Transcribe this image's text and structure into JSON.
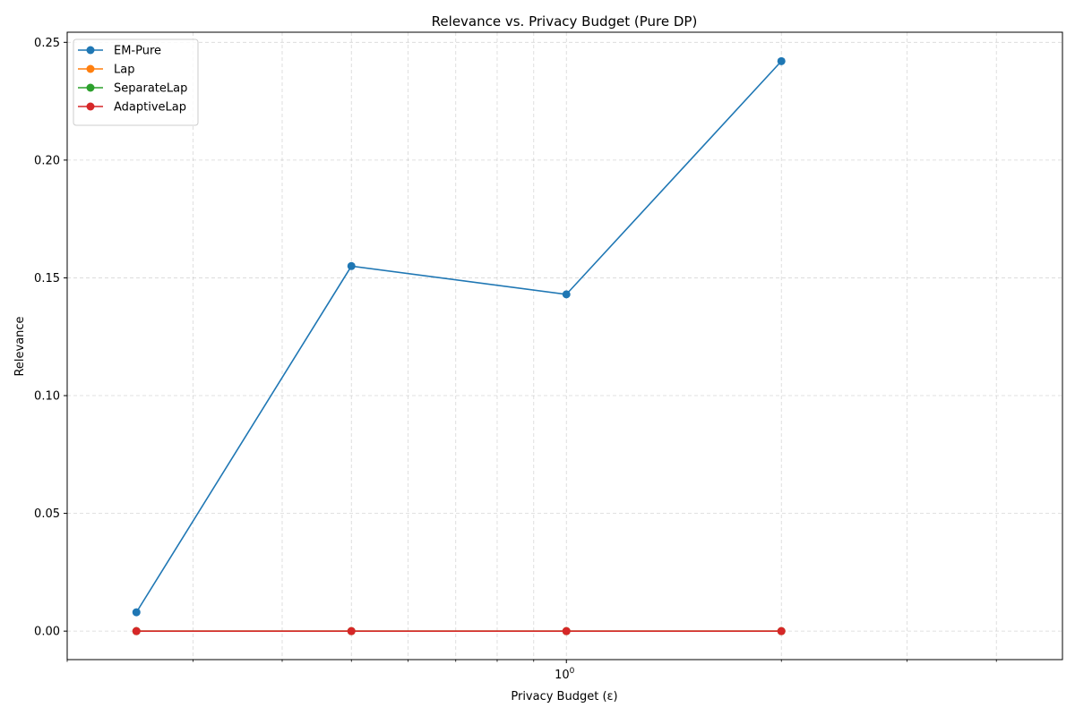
{
  "chart_data": {
    "type": "line",
    "title": "Relevance vs. Privacy Budget (Pure DP)",
    "xlabel": "Privacy Budget (ε)",
    "ylabel": "Relevance",
    "xscale": "log",
    "xlim": [
      0.2,
      4.95
    ],
    "ylim": [
      -0.0121,
      0.2543
    ],
    "x": [
      0.25,
      0.5,
      1.0,
      2.0
    ],
    "y_ticks": [
      0.0,
      0.05,
      0.1,
      0.15,
      0.2,
      0.25
    ],
    "y_tick_labels": [
      "0.00",
      "0.05",
      "0.10",
      "0.15",
      "0.20",
      "0.25"
    ],
    "x_major_ticks": [
      1.0
    ],
    "x_major_tick_labels": [
      "10"
    ],
    "x_major_tick_exponents": [
      "0"
    ],
    "x_minor_ticks": [
      0.2,
      0.3,
      0.4,
      0.5,
      0.6,
      0.7,
      0.8,
      0.9,
      2,
      3,
      4
    ],
    "grid": true,
    "legend_position": "upper-left",
    "series": [
      {
        "name": "EM-Pure",
        "color": "#1f77b4",
        "values": [
          0.008,
          0.155,
          0.143,
          0.242
        ]
      },
      {
        "name": "Lap",
        "color": "#ff7f0e",
        "values": [
          0.0,
          0.0,
          0.0,
          0.0
        ]
      },
      {
        "name": "SeparateLap",
        "color": "#2ca02c",
        "values": [
          0.0,
          0.0,
          0.0,
          0.0
        ]
      },
      {
        "name": "AdaptiveLap",
        "color": "#d62728",
        "values": [
          0.0,
          0.0,
          0.0,
          0.0
        ]
      }
    ]
  }
}
